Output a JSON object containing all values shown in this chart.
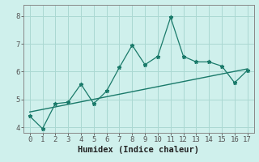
{
  "title": "",
  "xlabel": "Humidex (Indice chaleur)",
  "ylabel": "",
  "xlim": [
    -0.5,
    17.5
  ],
  "ylim": [
    3.8,
    8.4
  ],
  "xticks": [
    0,
    1,
    2,
    3,
    4,
    5,
    6,
    7,
    8,
    9,
    10,
    11,
    12,
    13,
    14,
    15,
    16,
    17
  ],
  "yticks": [
    4,
    5,
    6,
    7,
    8
  ],
  "bg_color": "#cff0ec",
  "line_color": "#1a7a6a",
  "grid_color": "#aad8d2",
  "scatter_x": [
    0,
    1,
    2,
    3,
    4,
    5,
    6,
    7,
    8,
    9,
    10,
    11,
    12,
    13,
    14,
    15,
    16,
    17
  ],
  "scatter_y": [
    4.4,
    3.95,
    4.85,
    4.9,
    5.55,
    4.85,
    5.3,
    6.15,
    6.95,
    6.25,
    6.55,
    7.95,
    6.55,
    6.35,
    6.35,
    6.2,
    5.6,
    6.05
  ],
  "trend_x": [
    0,
    17
  ],
  "trend_y": [
    4.55,
    6.1
  ],
  "tick_fontsize": 6.5,
  "xlabel_fontsize": 7.5,
  "spine_color": "#888888",
  "tick_color": "#555555"
}
